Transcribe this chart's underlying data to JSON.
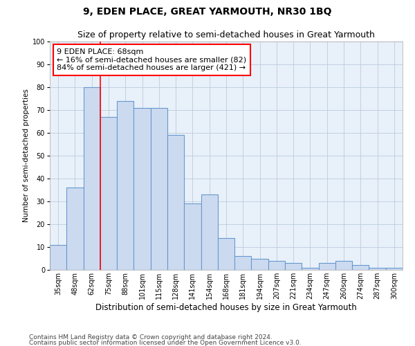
{
  "title": "9, EDEN PLACE, GREAT YARMOUTH, NR30 1BQ",
  "subtitle": "Size of property relative to semi-detached houses in Great Yarmouth",
  "xlabel": "Distribution of semi-detached houses by size in Great Yarmouth",
  "ylabel": "Number of semi-detached properties",
  "categories": [
    "35sqm",
    "48sqm",
    "62sqm",
    "75sqm",
    "88sqm",
    "101sqm",
    "115sqm",
    "128sqm",
    "141sqm",
    "154sqm",
    "168sqm",
    "181sqm",
    "194sqm",
    "207sqm",
    "221sqm",
    "234sqm",
    "247sqm",
    "260sqm",
    "274sqm",
    "287sqm",
    "300sqm"
  ],
  "values": [
    11,
    36,
    80,
    67,
    74,
    71,
    71,
    59,
    29,
    33,
    14,
    6,
    5,
    4,
    3,
    1,
    3,
    4,
    2,
    1,
    1
  ],
  "bar_color": "#ccdaf0",
  "bar_edge_color": "#6699cc",
  "bg_color": "#e8f0fa",
  "grid_color": "#bbccdd",
  "red_line_x": 2.5,
  "annotation_title": "9 EDEN PLACE: 68sqm",
  "annotation_line1": "← 16% of semi-detached houses are smaller (82)",
  "annotation_line2": "84% of semi-detached houses are larger (421) →",
  "annotation_box_color": "white",
  "annotation_box_edge": "red",
  "ylim": [
    0,
    100
  ],
  "yticks": [
    0,
    10,
    20,
    30,
    40,
    50,
    60,
    70,
    80,
    90,
    100
  ],
  "footer1": "Contains HM Land Registry data © Crown copyright and database right 2024.",
  "footer2": "Contains public sector information licensed under the Open Government Licence v3.0.",
  "title_fontsize": 10,
  "subtitle_fontsize": 9,
  "xlabel_fontsize": 8.5,
  "ylabel_fontsize": 7.5,
  "tick_fontsize": 7,
  "annotation_fontsize": 8,
  "footer_fontsize": 6.5
}
